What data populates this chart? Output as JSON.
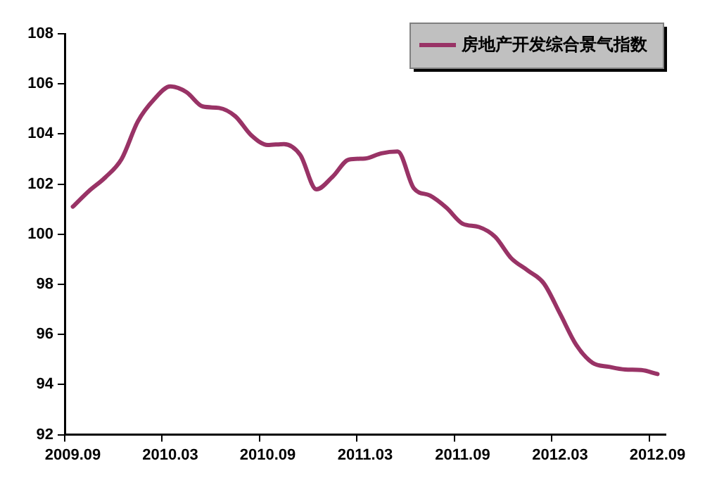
{
  "chart_data": {
    "type": "line",
    "categories": [
      "2009.09",
      null,
      null,
      null,
      null,
      null,
      "2010.03",
      null,
      null,
      null,
      null,
      null,
      "2010.09",
      null,
      null,
      null,
      null,
      null,
      "2011.03",
      null,
      null,
      null,
      null,
      null,
      "2011.09",
      null,
      null,
      null,
      null,
      null,
      "2012.03",
      null,
      null,
      null,
      null,
      null,
      "2012.09"
    ],
    "series": [
      {
        "name": "房地产开发综合景气指数",
        "color": "#993366",
        "values": [
          101.1,
          101.73,
          102.27,
          103.0,
          104.5,
          105.38,
          105.9,
          105.67,
          105.1,
          105.04,
          104.71,
          103.94,
          103.56,
          103.6,
          103.17,
          101.79,
          102.3,
          102.98,
          103.02,
          103.23,
          103.3,
          101.83,
          101.54,
          101.06,
          100.42,
          100.29,
          99.9,
          99.04,
          98.56,
          98.04,
          96.83,
          95.58,
          94.87,
          94.71,
          94.6,
          94.58,
          94.42
        ]
      }
    ],
    "ylim": [
      92,
      108
    ],
    "yticks": [
      92,
      94,
      96,
      98,
      100,
      102,
      104,
      106,
      108
    ],
    "grid": false,
    "legend": "top right",
    "marker": "none",
    "line_style": "solid"
  }
}
